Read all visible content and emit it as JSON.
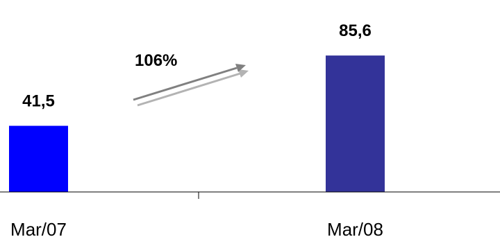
{
  "chart_data": {
    "type": "bar",
    "categories": [
      "Mar/07",
      "Mar/08"
    ],
    "values": [
      41.5,
      85.6
    ],
    "value_labels": [
      "41,5",
      "85,6"
    ],
    "bar_colors": [
      "#0000ff",
      "#333399"
    ],
    "title": "",
    "xlabel": "",
    "ylabel": "",
    "ylim": [
      0,
      100
    ],
    "grid": false,
    "legend": "none",
    "annotations": [
      {
        "text": "106%",
        "icon": "growth-arrow-icon"
      }
    ]
  },
  "colors": {
    "axis": "#000000",
    "arrow_dark": "#808080",
    "arrow_light": "#b3b3b3"
  }
}
